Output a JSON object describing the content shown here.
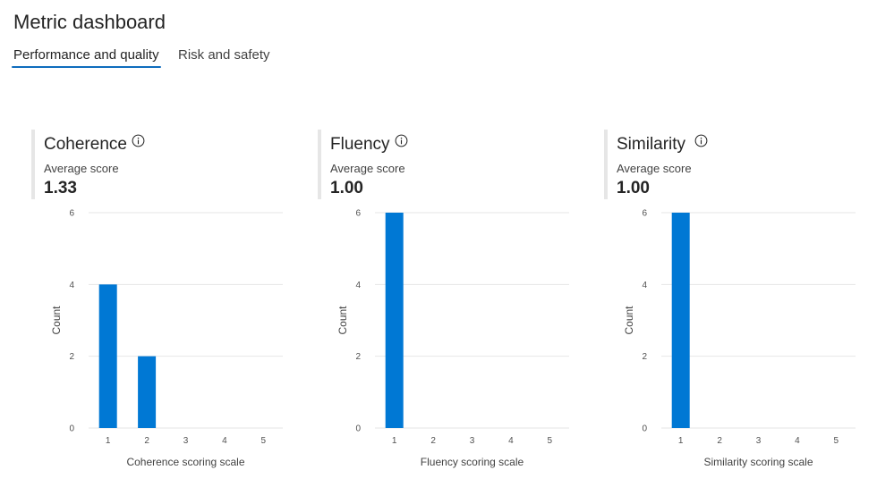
{
  "page": {
    "title": "Metric dashboard"
  },
  "tabs": [
    {
      "label": "Performance and quality",
      "active": true
    },
    {
      "label": "Risk and safety",
      "active": false
    }
  ],
  "colors": {
    "bar": "#0078d4",
    "accent": "#0f6cbd",
    "grid": "#e6e6e6",
    "axis_text": "#505050"
  },
  "chart_data": [
    {
      "type": "bar",
      "title": "Coherence",
      "average_label": "Average score",
      "average_value": "1.33",
      "categories": [
        "1",
        "2",
        "3",
        "4",
        "5"
      ],
      "values": [
        4,
        2,
        0,
        0,
        0
      ],
      "xlabel": "Coherence scoring scale",
      "ylabel": "Count",
      "ylim": [
        0,
        6
      ],
      "yticks": [
        0,
        2,
        4,
        6
      ],
      "grid": true
    },
    {
      "type": "bar",
      "title": "Fluency",
      "average_label": "Average score",
      "average_value": "1.00",
      "categories": [
        "1",
        "2",
        "3",
        "4",
        "5"
      ],
      "values": [
        6,
        0,
        0,
        0,
        0
      ],
      "xlabel": "Fluency scoring scale",
      "ylabel": "Count",
      "ylim": [
        0,
        6
      ],
      "yticks": [
        0,
        2,
        4,
        6
      ],
      "grid": true
    },
    {
      "type": "bar",
      "title": "Similarity",
      "average_label": "Average score",
      "average_value": "1.00",
      "categories": [
        "1",
        "2",
        "3",
        "4",
        "5"
      ],
      "values": [
        6,
        0,
        0,
        0,
        0
      ],
      "xlabel": "Similarity scoring scale",
      "ylabel": "Count",
      "ylim": [
        0,
        6
      ],
      "yticks": [
        0,
        2,
        4,
        6
      ],
      "grid": true
    }
  ]
}
